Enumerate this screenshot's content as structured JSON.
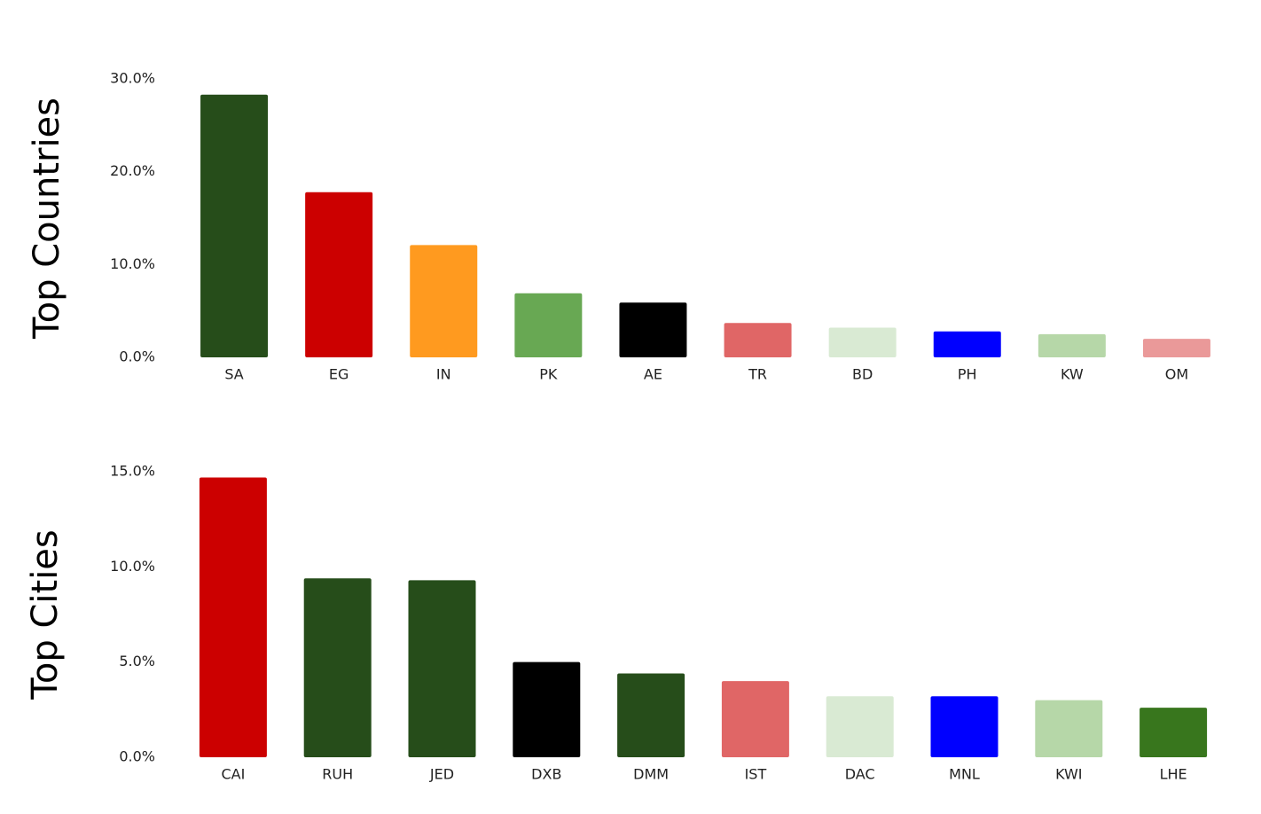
{
  "chart_data": [
    {
      "type": "bar",
      "ylabel": "Top Countries",
      "categories": [
        "SA",
        "EG",
        "IN",
        "PK",
        "AE",
        "TR",
        "BD",
        "PH",
        "KW",
        "OM"
      ],
      "values": [
        28.3,
        17.8,
        12.1,
        6.9,
        5.9,
        3.7,
        3.2,
        2.8,
        2.5,
        2.0
      ],
      "colors": [
        "#264d1a",
        "#cc0000",
        "#ff9a1f",
        "#68a853",
        "#000000",
        "#e06666",
        "#d9ead3",
        "#0000ff",
        "#b6d7a8",
        "#ea9999"
      ],
      "ylim": [
        0,
        30
      ],
      "yticks": [
        {
          "value": 0,
          "label": "0.0%"
        },
        {
          "value": 10,
          "label": "10.0%"
        },
        {
          "value": 20,
          "label": "20.0%"
        },
        {
          "value": 30,
          "label": "30.0%"
        }
      ]
    },
    {
      "type": "bar",
      "ylabel": "Top Cities",
      "categories": [
        "CAI",
        "RUH",
        "JED",
        "DXB",
        "DMM",
        "IST",
        "DAC",
        "MNL",
        "KWI",
        "LHE"
      ],
      "values": [
        14.7,
        9.4,
        9.3,
        5.0,
        4.4,
        4.0,
        3.2,
        3.2,
        3.0,
        2.6
      ],
      "colors": [
        "#cc0000",
        "#264d1a",
        "#264d1a",
        "#000000",
        "#264d1a",
        "#e06666",
        "#d9ead3",
        "#0000ff",
        "#b6d7a8",
        "#38761d"
      ],
      "ylim": [
        0,
        15
      ],
      "yticks": [
        {
          "value": 0,
          "label": "0.0%"
        },
        {
          "value": 5,
          "label": "5.0%"
        },
        {
          "value": 10,
          "label": "10.0%"
        },
        {
          "value": 15,
          "label": "15.0%"
        }
      ]
    }
  ]
}
